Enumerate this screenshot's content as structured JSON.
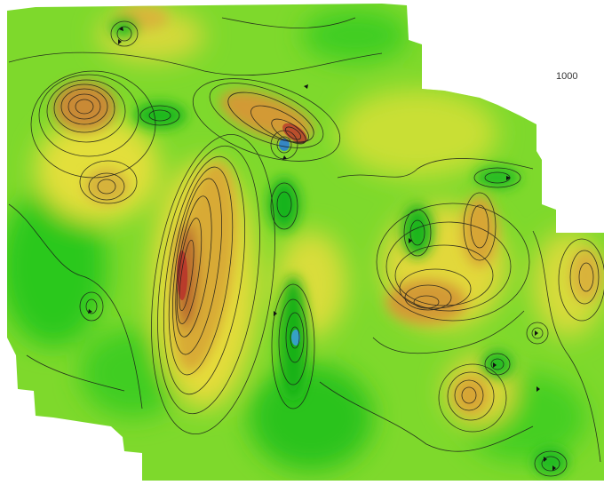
{
  "map": {
    "scale_label": "1000",
    "colors": {
      "background": "#ffffff",
      "low_green": "#1fc21f",
      "mid_green": "#6fdc2a",
      "yellow": "#e7e23a",
      "orange": "#d9a733",
      "high_brown": "#b8652e",
      "peak_red": "#c0392b",
      "deep_blue": "#2a7fd4",
      "contour": "#1a1a1a"
    },
    "icons": [
      "contour-map",
      "depression-tick-marks"
    ]
  }
}
